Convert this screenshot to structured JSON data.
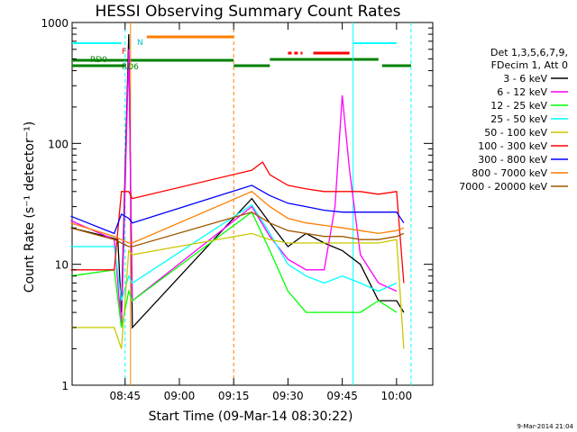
{
  "chart_data": {
    "type": "line",
    "title": "HESSI Observing Summary Count Rates",
    "xlabel": "Start Time (09-Mar-14 08:30:22)",
    "ylabel": "Count Rate (s⁻¹ detector⁻¹)",
    "y_scale": "log",
    "ylim": [
      1,
      1000
    ],
    "xlim": [
      "08:30:22",
      "10:10:00"
    ],
    "x_ticks": [
      "08:45",
      "09:00",
      "09:15",
      "09:30",
      "09:45",
      "10:00"
    ],
    "y_ticks": [
      "1",
      "10",
      "100",
      "1000"
    ],
    "timestamp": "9-Mar-2014 21:04",
    "legend": {
      "header": [
        "Det 1,3,5,6,7,9,",
        "FDecim 1, Att 0"
      ],
      "placement": "right"
    },
    "flag_labels": [
      "N",
      "F",
      "RD0",
      "RD6"
    ],
    "series": [
      {
        "name": "3 - 6 keV",
        "color": "#000000",
        "x": [
          "08:30",
          "08:40",
          "08:43",
          "08:44",
          "08:46",
          "08:47",
          "09:20",
          "09:25",
          "09:30",
          "09:35",
          "09:40",
          "09:45",
          "09:50",
          "09:55",
          "10:00",
          "10:02"
        ],
        "values": [
          20,
          17,
          16,
          4,
          800,
          3,
          35,
          22,
          14,
          18,
          15,
          13,
          10,
          5,
          5,
          4
        ]
      },
      {
        "name": "6 - 12 keV",
        "color": "#ff00ff",
        "x": [
          "08:30",
          "08:42",
          "08:44",
          "08:46",
          "08:47",
          "09:20",
          "09:25",
          "09:30",
          "09:35",
          "09:40",
          "09:43",
          "09:45",
          "09:47",
          "09:50",
          "09:55",
          "10:00"
        ],
        "values": [
          23,
          16,
          3,
          600,
          5,
          30,
          17,
          11,
          9,
          9,
          30,
          250,
          60,
          12,
          7,
          6
        ]
      },
      {
        "name": "12 - 25 keV",
        "color": "#00ff00",
        "x": [
          "08:30",
          "08:42",
          "08:44",
          "08:46",
          "08:47",
          "09:20",
          "09:25",
          "09:30",
          "09:35",
          "09:40",
          "09:45",
          "09:50",
          "09:55",
          "10:00"
        ],
        "values": [
          8,
          9,
          3,
          6,
          5,
          27,
          13,
          6,
          4,
          4,
          4,
          4,
          5,
          4
        ]
      },
      {
        "name": "25 - 50 keV",
        "color": "#00ffff",
        "x": [
          "08:30",
          "08:42",
          "08:44",
          "08:46",
          "08:47",
          "09:20",
          "09:25",
          "09:30",
          "09:35",
          "09:40",
          "09:45",
          "09:50",
          "09:55",
          "10:00"
        ],
        "values": [
          14,
          14,
          5,
          8,
          7,
          31,
          18,
          10,
          8,
          7,
          8,
          7,
          6,
          7
        ]
      },
      {
        "name": "50 - 100 keV",
        "color": "#c8c800",
        "x": [
          "08:30",
          "08:42",
          "08:44",
          "08:46",
          "08:47",
          "09:20",
          "09:25",
          "09:30",
          "09:35",
          "09:40",
          "09:45",
          "09:50",
          "09:55",
          "10:00",
          "10:02"
        ],
        "values": [
          3,
          3,
          2,
          13,
          12,
          18,
          16,
          15,
          15,
          15,
          15,
          15,
          15,
          16,
          2
        ]
      },
      {
        "name": "100 - 300 keV",
        "color": "#ff0000",
        "x": [
          "08:30",
          "08:42",
          "08:44",
          "08:46",
          "08:47",
          "09:20",
          "09:23",
          "09:25",
          "09:30",
          "09:35",
          "09:40",
          "09:45",
          "09:50",
          "09:55",
          "10:00",
          "10:02"
        ],
        "values": [
          9,
          9,
          40,
          40,
          35,
          60,
          70,
          55,
          45,
          42,
          40,
          40,
          40,
          38,
          40,
          7
        ]
      },
      {
        "name": "300 - 800 keV",
        "color": "#0000ff",
        "x": [
          "08:30",
          "08:42",
          "08:44",
          "08:46",
          "08:47",
          "09:20",
          "09:25",
          "09:30",
          "09:35",
          "09:40",
          "09:45",
          "09:50",
          "09:55",
          "10:00",
          "10:02"
        ],
        "values": [
          25,
          18,
          26,
          24,
          22,
          45,
          37,
          32,
          30,
          28,
          27,
          27,
          27,
          27,
          22
        ]
      },
      {
        "name": "800 - 7000 keV",
        "color": "#ff7f00",
        "x": [
          "08:30",
          "08:42",
          "08:44",
          "08:46",
          "08:47",
          "09:20",
          "09:25",
          "09:30",
          "09:35",
          "09:40",
          "09:45",
          "09:50",
          "09:55",
          "10:00",
          "10:02"
        ],
        "values": [
          22,
          17,
          16,
          15,
          15,
          40,
          30,
          24,
          22,
          21,
          20,
          19,
          18,
          19,
          20
        ]
      },
      {
        "name": "7000 - 20000 keV",
        "color": "#a05a00",
        "x": [
          "08:30",
          "08:42",
          "08:44",
          "08:46",
          "08:47",
          "09:20",
          "09:25",
          "09:30",
          "09:35",
          "09:40",
          "09:45",
          "09:50",
          "09:55",
          "10:00",
          "10:02"
        ],
        "values": [
          20,
          16,
          15,
          14,
          14,
          27,
          22,
          19,
          18,
          17,
          17,
          16,
          16,
          17,
          18
        ]
      }
    ]
  }
}
